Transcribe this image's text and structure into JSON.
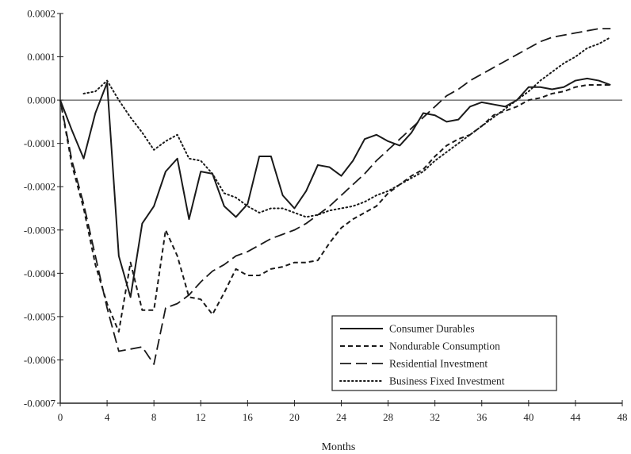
{
  "chart_data": {
    "type": "line",
    "title": "",
    "xlabel": "Months",
    "ylabel": "",
    "xlim": [
      0,
      48
    ],
    "ylim": [
      -0.0007,
      0.0002
    ],
    "x_ticks": [
      0,
      4,
      8,
      12,
      16,
      20,
      24,
      28,
      32,
      36,
      40,
      44,
      48
    ],
    "x_tick_labels": [
      "0",
      "4",
      "8",
      "12",
      "16",
      "20",
      "24",
      "28",
      "32",
      "36",
      "40",
      "44",
      "48"
    ],
    "y_ticks": [
      0.0002,
      0.0001,
      0.0,
      -0.0001,
      -0.0002,
      -0.0003,
      -0.0004,
      -0.0005,
      -0.0006,
      -0.0007
    ],
    "y_tick_labels": [
      "0.0002",
      "0.0001",
      "0.0000",
      "-0.0001",
      "-0.0002",
      "-0.0003",
      "-0.0004",
      "-0.0005",
      "-0.0006",
      "-0.0007"
    ],
    "zero_line": true,
    "grid": false,
    "legend_position": "bottom-right",
    "series": [
      {
        "name": "Consumer Durables",
        "style": "solid",
        "x": [
          0,
          1,
          2,
          3,
          4,
          5,
          6,
          7,
          8,
          9,
          10,
          11,
          12,
          13,
          14,
          15,
          16,
          17,
          18,
          19,
          20,
          21,
          22,
          23,
          24,
          25,
          26,
          27,
          28,
          29,
          30,
          31,
          32,
          33,
          34,
          35,
          36,
          37,
          38,
          39,
          40,
          41,
          42,
          43,
          44,
          45,
          46,
          47
        ],
        "y": [
          0.0,
          -7e-05,
          -0.000135,
          -3e-05,
          4e-05,
          -0.00036,
          -0.000455,
          -0.000285,
          -0.000245,
          -0.000165,
          -0.000135,
          -0.000275,
          -0.000165,
          -0.00017,
          -0.000245,
          -0.00027,
          -0.00024,
          -0.00013,
          -0.00013,
          -0.00022,
          -0.00025,
          -0.00021,
          -0.00015,
          -0.000155,
          -0.000175,
          -0.00014,
          -9e-05,
          -8e-05,
          -9.5e-05,
          -0.000105,
          -7.5e-05,
          -3e-05,
          -3.5e-05,
          -5e-05,
          -4.5e-05,
          -1.5e-05,
          -5e-06,
          -1e-05,
          -1.5e-05,
          0.0,
          3e-05,
          3e-05,
          2.5e-05,
          3e-05,
          4.5e-05,
          5e-05,
          4.5e-05,
          3.5e-05
        ]
      },
      {
        "name": "Nondurable Consumption",
        "style": "dashed",
        "x": [
          0,
          1,
          2,
          3,
          4,
          5,
          6,
          7,
          8,
          9,
          10,
          11,
          12,
          13,
          14,
          15,
          16,
          17,
          18,
          19,
          20,
          21,
          22,
          23,
          24,
          25,
          26,
          27,
          28,
          29,
          30,
          31,
          32,
          33,
          34,
          35,
          36,
          37,
          38,
          39,
          40,
          41,
          42,
          43,
          44,
          45,
          46,
          47
        ],
        "y": [
          0.0,
          -0.00015,
          -0.00025,
          -0.00038,
          -0.00047,
          -0.000535,
          -0.000375,
          -0.000485,
          -0.000485,
          -0.0003,
          -0.00036,
          -0.000455,
          -0.00046,
          -0.000495,
          -0.000445,
          -0.00039,
          -0.000405,
          -0.000405,
          -0.00039,
          -0.000385,
          -0.000375,
          -0.000375,
          -0.00037,
          -0.00033,
          -0.000295,
          -0.000275,
          -0.00026,
          -0.000245,
          -0.000215,
          -0.000195,
          -0.000175,
          -0.00016,
          -0.00013,
          -0.000105,
          -9e-05,
          -8e-05,
          -6e-05,
          -3.5e-05,
          -2.5e-05,
          -1.5e-05,
          0.0,
          5e-06,
          1.5e-05,
          2e-05,
          3e-05,
          3.5e-05,
          3.5e-05,
          3.5e-05
        ]
      },
      {
        "name": "Residential Investment",
        "style": "long-dash",
        "x": [
          0,
          1,
          2,
          3,
          4,
          5,
          6,
          7,
          8,
          9,
          10,
          11,
          12,
          13,
          14,
          15,
          16,
          17,
          18,
          19,
          20,
          21,
          22,
          23,
          24,
          25,
          26,
          27,
          28,
          29,
          30,
          31,
          32,
          33,
          34,
          35,
          36,
          37,
          38,
          39,
          40,
          41,
          42,
          43,
          44,
          45,
          46,
          47
        ],
        "y": [
          0.0,
          -0.00014,
          -0.00024,
          -0.00036,
          -0.00048,
          -0.00058,
          -0.000575,
          -0.00057,
          -0.00061,
          -0.00048,
          -0.00047,
          -0.00045,
          -0.00042,
          -0.000395,
          -0.00038,
          -0.00036,
          -0.00035,
          -0.000335,
          -0.00032,
          -0.00031,
          -0.0003,
          -0.000285,
          -0.000265,
          -0.000245,
          -0.00022,
          -0.000195,
          -0.00017,
          -0.00014,
          -0.000115,
          -9e-05,
          -6.5e-05,
          -4e-05,
          -1.5e-05,
          1e-05,
          2.5e-05,
          4.5e-05,
          6e-05,
          7.5e-05,
          9e-05,
          0.000105,
          0.00012,
          0.000135,
          0.000145,
          0.00015,
          0.000155,
          0.00016,
          0.000165,
          0.000165
        ]
      },
      {
        "name": "Business Fixed Investment",
        "style": "dotted",
        "x": [
          2,
          3,
          4,
          5,
          6,
          7,
          8,
          9,
          10,
          11,
          12,
          13,
          14,
          15,
          16,
          17,
          18,
          19,
          20,
          21,
          22,
          23,
          24,
          25,
          26,
          27,
          28,
          29,
          30,
          31,
          32,
          33,
          34,
          35,
          36,
          37,
          38,
          39,
          40,
          41,
          42,
          43,
          44,
          45,
          46,
          47
        ],
        "y": [
          1.5e-05,
          2e-05,
          4.5e-05,
          0.0,
          -4e-05,
          -7.5e-05,
          -0.000115,
          -9.5e-05,
          -8e-05,
          -0.000135,
          -0.00014,
          -0.00017,
          -0.000215,
          -0.000225,
          -0.000245,
          -0.00026,
          -0.00025,
          -0.00025,
          -0.00026,
          -0.00027,
          -0.000265,
          -0.000255,
          -0.00025,
          -0.000245,
          -0.000235,
          -0.00022,
          -0.00021,
          -0.000195,
          -0.00018,
          -0.000165,
          -0.00014,
          -0.00012,
          -0.0001,
          -8e-05,
          -6e-05,
          -4e-05,
          -2e-05,
          0.0,
          2e-05,
          4.5e-05,
          6.5e-05,
          8.5e-05,
          0.0001,
          0.00012,
          0.00013,
          0.000145
        ]
      }
    ]
  }
}
